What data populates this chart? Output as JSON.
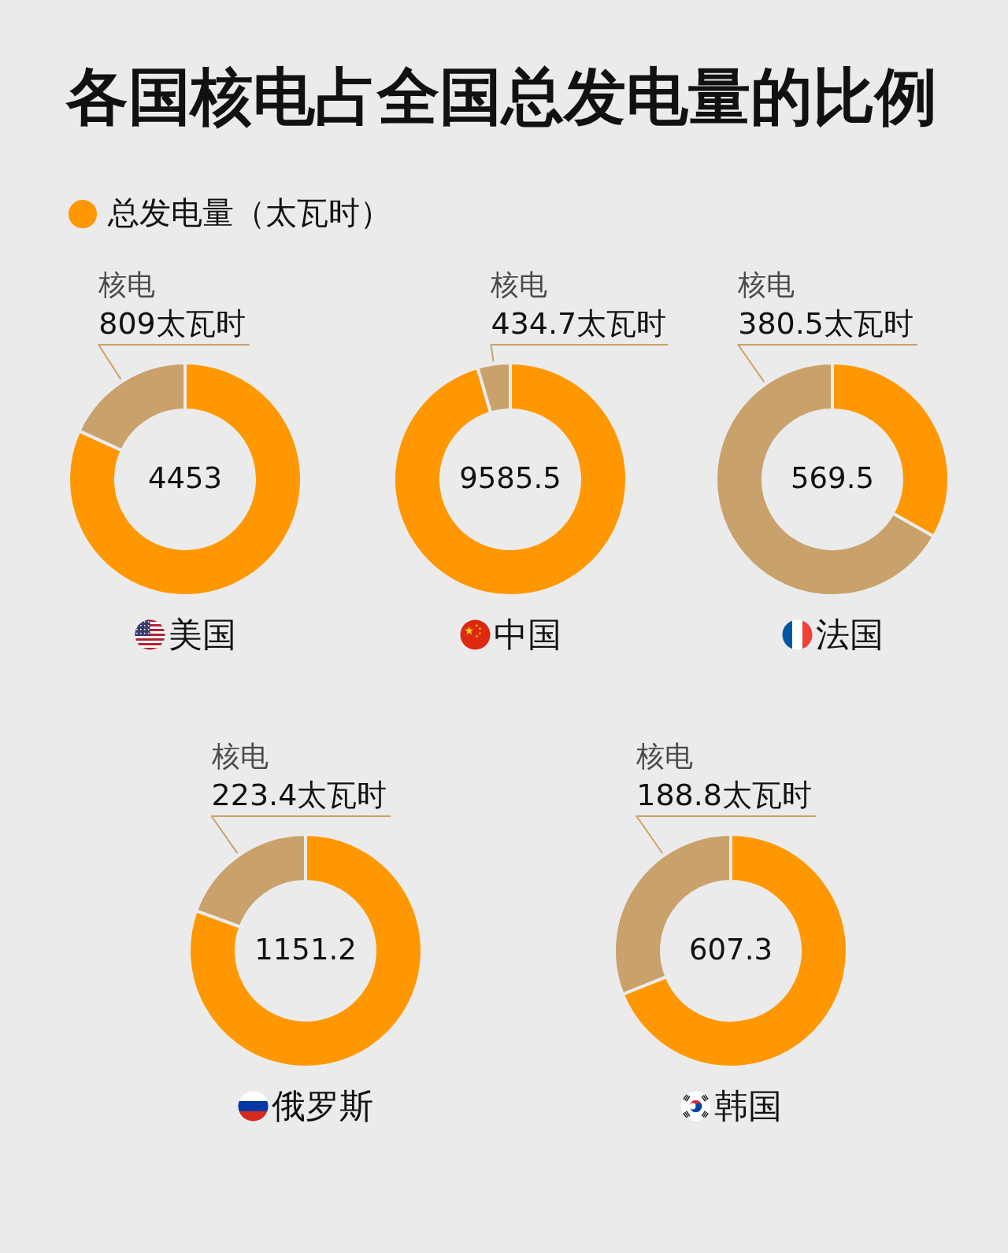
{
  "chart_data": [
    {
      "type": "donut",
      "title": "各国核电占全国总发电量的比例",
      "categories": [
        "总发电量（太瓦时）",
        "核电"
      ],
      "values": [
        3644,
        809
      ],
      "colors": [
        "#ff9800",
        "#c9a16b"
      ],
      "value_labels": [
        null,
        "809太瓦时"
      ],
      "annotations": [
        "4453"
      ],
      "xlabel": "美国",
      "legend": "top"
    },
    {
      "type": "donut",
      "categories": [
        null,
        "核电"
      ],
      "values": [
        9150.8,
        434.7
      ],
      "colors": [
        "#ff9800",
        "#c9a16b"
      ],
      "value_labels": [
        null,
        "434.7太瓦时"
      ],
      "annotations": [
        "9585.5"
      ],
      "xlabel": "中国"
    },
    {
      "type": "donut",
      "categories": [
        null,
        "核电"
      ],
      "values": [
        189,
        380.5
      ],
      "colors": [
        "#ff9800",
        "#c9a16b"
      ],
      "value_labels": [
        null,
        "380.5太瓦时"
      ],
      "annotations": [
        "569.5"
      ],
      "xlabel": "法国"
    },
    {
      "type": "donut",
      "categories": [
        null,
        "核电"
      ],
      "values": [
        927.8,
        223.4
      ],
      "colors": [
        "#ff9800",
        "#c9a16b"
      ],
      "value_labels": [
        null,
        "223.4太瓦时"
      ],
      "annotations": [
        "1151.2"
      ],
      "xlabel": "俄罗斯"
    },
    {
      "type": "donut",
      "categories": [
        null,
        "核电"
      ],
      "values": [
        418.5,
        188.8
      ],
      "colors": [
        "#ff9800",
        "#c9a16b"
      ],
      "value_labels": [
        null,
        "188.8太瓦时"
      ],
      "annotations": [
        "607.3"
      ],
      "xlabel": "韩国"
    }
  ]
}
